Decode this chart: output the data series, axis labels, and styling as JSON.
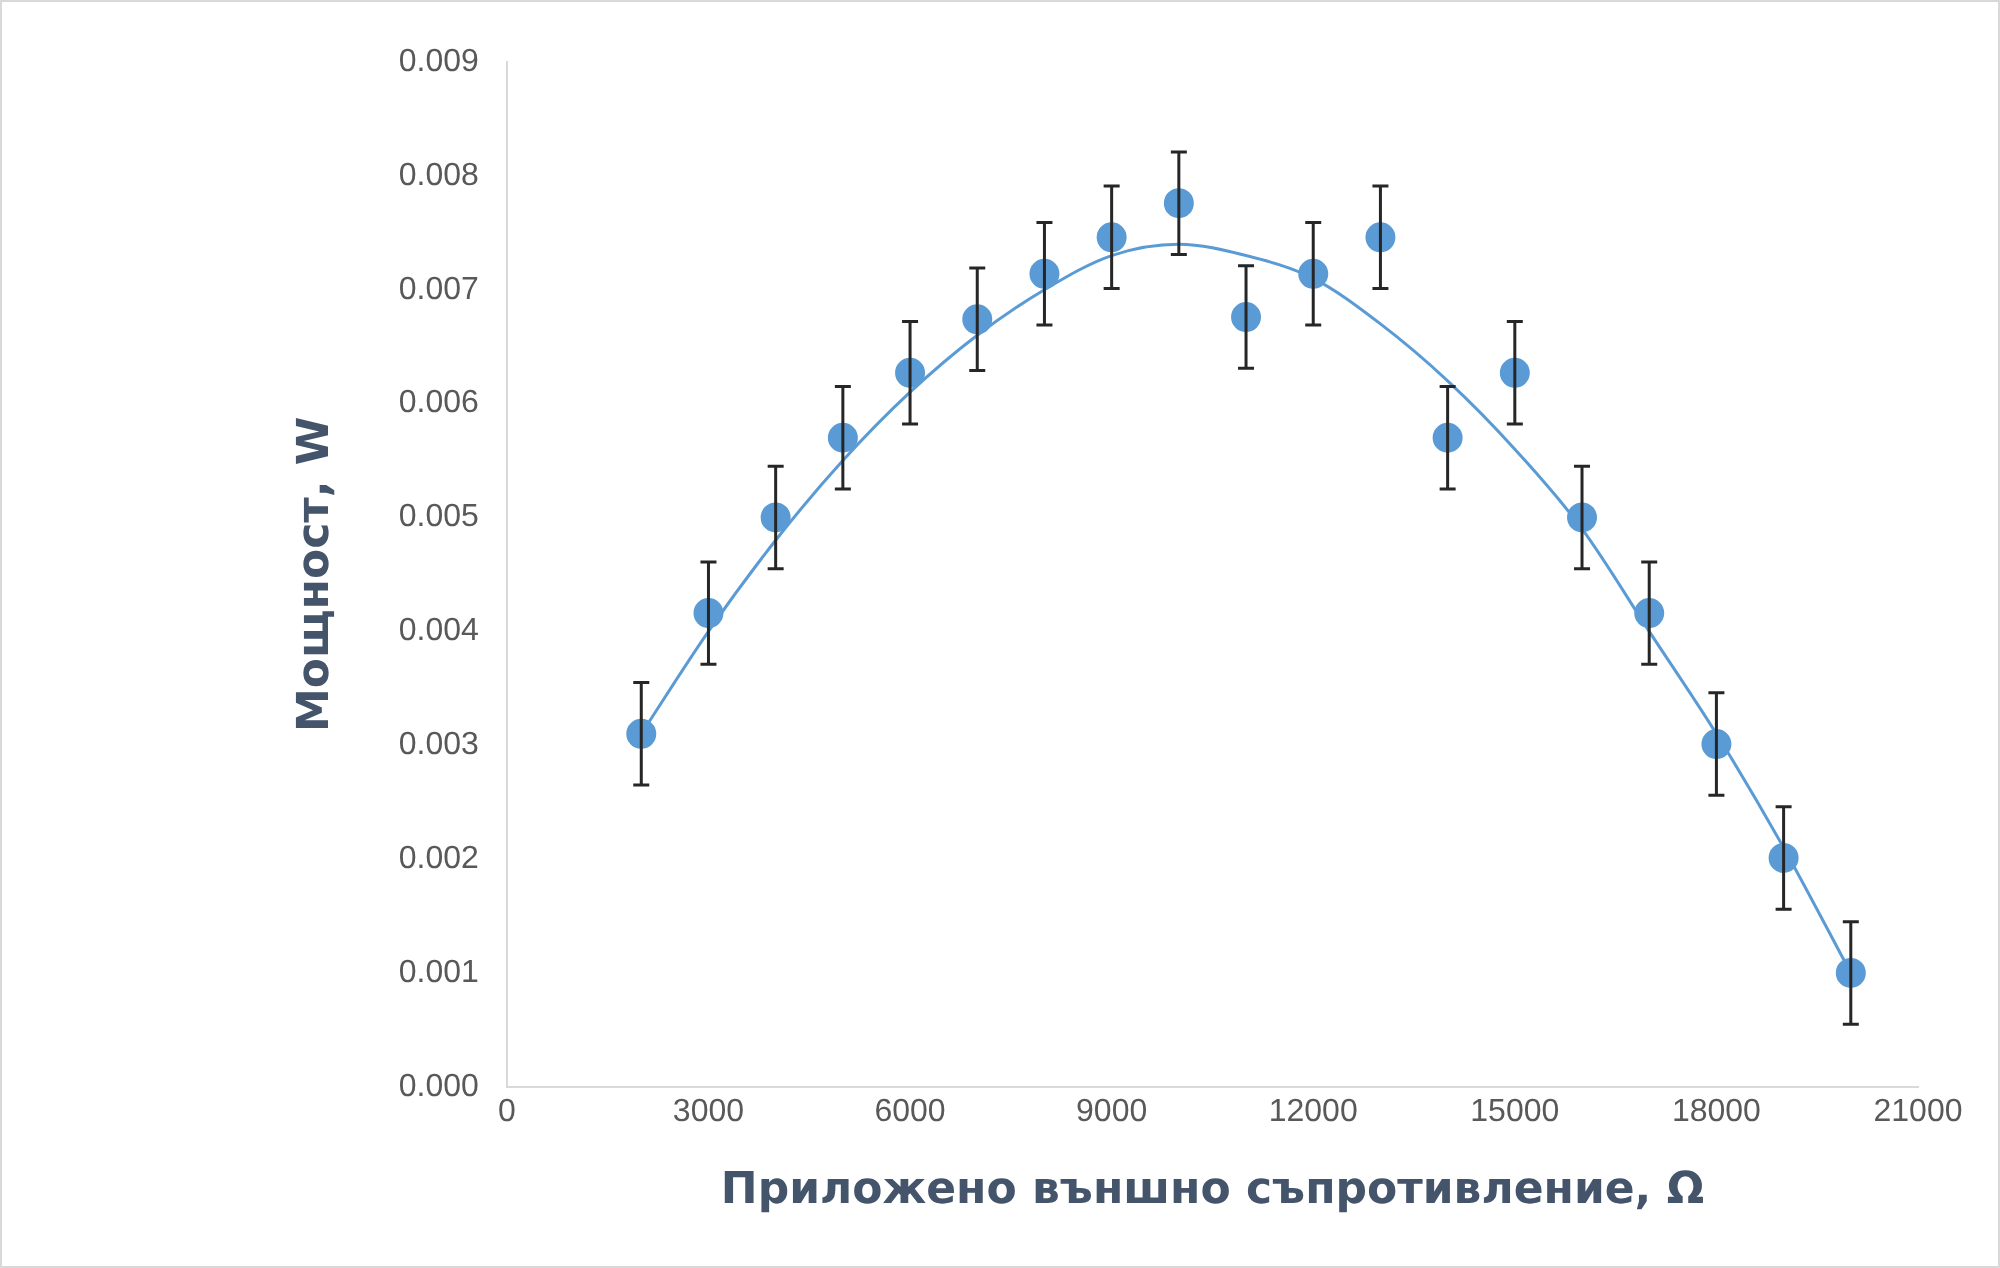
{
  "chart_data": {
    "type": "scatter",
    "xlabel": "Приложено външно съпротивление, Ω",
    "ylabel": "Мощност, W",
    "xlim": [
      0,
      21000
    ],
    "xticks": [
      0,
      3000,
      6000,
      9000,
      12000,
      15000,
      18000,
      21000
    ],
    "ylim": [
      0,
      0.009
    ],
    "yticks": [
      {
        "value": 0,
        "label": "0.000"
      },
      {
        "value": 0.001,
        "label": "0.001"
      },
      {
        "value": 0.002,
        "label": "0.002"
      },
      {
        "value": 0.003,
        "label": "0.003"
      },
      {
        "value": 0.004,
        "label": "0.004"
      },
      {
        "value": 0.005,
        "label": "0.005"
      },
      {
        "value": 0.006,
        "label": "0.006"
      },
      {
        "value": 0.007,
        "label": "0.007"
      },
      {
        "value": 0.008,
        "label": "0.008"
      },
      {
        "value": 0.009,
        "label": "0.009"
      }
    ],
    "grid": false,
    "legend": false,
    "marker": "circle",
    "series": [
      {
        "type": "scatter",
        "color": "#5b9bd5",
        "x": [
          2000,
          3000,
          4000,
          5000,
          6000,
          7000,
          8000,
          9000,
          10000,
          11000,
          12000,
          13000,
          14000,
          15000,
          16000,
          17000,
          18000,
          19000,
          20000
        ],
        "values": [
          0.0031,
          0.00416,
          0.005,
          0.0057,
          0.00627,
          0.00674,
          0.00714,
          0.00746,
          0.00776,
          0.00676,
          0.00714,
          0.00746,
          0.0057,
          0.00627,
          0.005,
          0.00416,
          0.00301,
          0.00201,
          0.001
        ],
        "errors": [
          0.00045,
          0.00045,
          0.00045,
          0.00045,
          0.00045,
          0.00045,
          0.00045,
          0.00045,
          0.00045,
          0.00045,
          0.00045,
          0.00045,
          0.00045,
          0.00045,
          0.00045,
          0.00045,
          0.00045,
          0.00045,
          0.00045
        ]
      },
      {
        "type": "line",
        "color": "#5b9bd5",
        "marker": "none",
        "x": [
          2000,
          3000,
          4000,
          5000,
          6000,
          7000,
          8000,
          9000,
          10000,
          11000,
          12000,
          13000,
          14000,
          15000,
          16000,
          17000,
          18000,
          19000,
          20000
        ],
        "values": [
          0.0031,
          0.004,
          0.0048,
          0.0055,
          0.0061,
          0.0066,
          0.007,
          0.0073,
          0.0074,
          0.0073,
          0.0071,
          0.0067,
          0.0062,
          0.0056,
          0.0049,
          0.004,
          0.0031,
          0.0021,
          0.001
        ]
      }
    ]
  }
}
